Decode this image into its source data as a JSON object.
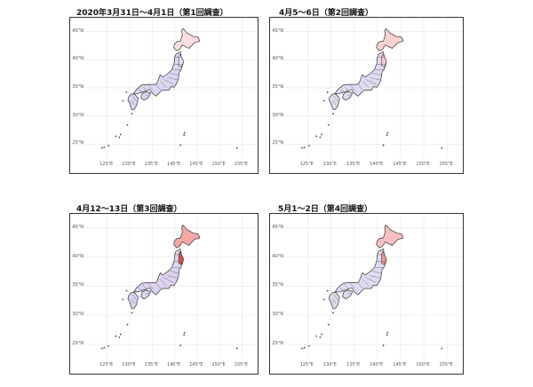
{
  "maps": [
    {
      "title": "2020年3月31日〜4月1日（第1回調査）",
      "north_level": 0.25,
      "north_color": "#fbdede",
      "tohoku_level": 0.0,
      "tohoku_color": "#e4def3",
      "base_color": "#ddd6f3"
    },
    {
      "title": "4月5〜6日（第2回調査）",
      "north_level": 0.3,
      "north_color": "#f9d2d2",
      "tohoku_level": 0.35,
      "tohoku_color": "#f6c9c9",
      "base_color": "#e0dbf2"
    },
    {
      "title": "4月12〜13日（第3回調査）",
      "north_level": 0.5,
      "north_color": "#f5a7a7",
      "tohoku_level": 0.95,
      "tohoku_color": "#d94f4f",
      "base_color": "#dcd3f1"
    },
    {
      "title": "5月1〜2日（第4回調査）",
      "north_level": 0.4,
      "north_color": "#f7c1c1",
      "tohoku_level": 0.55,
      "tohoku_color": "#ed9595",
      "base_color": "#e0dbf2"
    }
  ],
  "lat_labels": [
    "45°N",
    "40°N",
    "35°N",
    "30°N",
    "25°N"
  ],
  "lon_labels": [
    "125°E",
    "130°E",
    "135°E",
    "140°E",
    "145°E",
    "150°E",
    "155°E"
  ]
}
